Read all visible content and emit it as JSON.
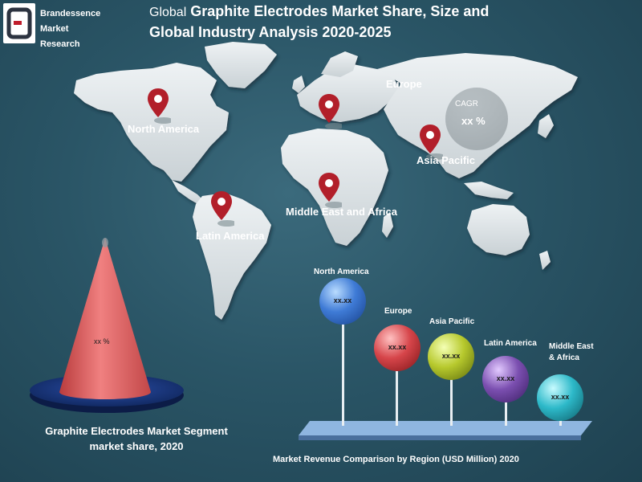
{
  "brand": {
    "line1": "Brandessence",
    "line2": "Market",
    "line3": "Research"
  },
  "title": {
    "prefix": "Global",
    "main_line1": "Graphite Electrodes Market Share, Size and",
    "main_line2": "Global Industry Analysis 2020-2025"
  },
  "map_labels": {
    "north_america": "North America",
    "europe": "Europe",
    "asia_pacific": "Asia Pacific",
    "middle_east_africa": "Middle East and Africa",
    "latin_america": "Latin America"
  },
  "cagr": {
    "label": "CAGR",
    "value": "xx %"
  },
  "segment": {
    "value": "xx %",
    "caption_line1": "Graphite Electrodes Market Segment",
    "caption_line2": "market share, 2020"
  },
  "regions": [
    {
      "label": "North America",
      "value": "xx.xx",
      "color": "#3f7bd6"
    },
    {
      "label": "Europe",
      "value": "xx.xx",
      "color": "#d6454a"
    },
    {
      "label": "Asia Pacific",
      "value": "xx.xx",
      "color": "#b7c92d"
    },
    {
      "label": "Latin America",
      "value": "xx.xx",
      "color": "#7b4fb0"
    },
    {
      "label_line1": "Middle East",
      "label_line2": "& Africa",
      "value": "xx.xx",
      "color": "#2db9c9"
    }
  ],
  "bottom_caption": "Market Revenue Comparison by Region (USD Million) 2020",
  "colors": {
    "background": "#2a5566",
    "map_land": "#dde3e6",
    "pin": "#b21f2a",
    "cone": "#e0696a",
    "disc": "#1d3a8a"
  }
}
